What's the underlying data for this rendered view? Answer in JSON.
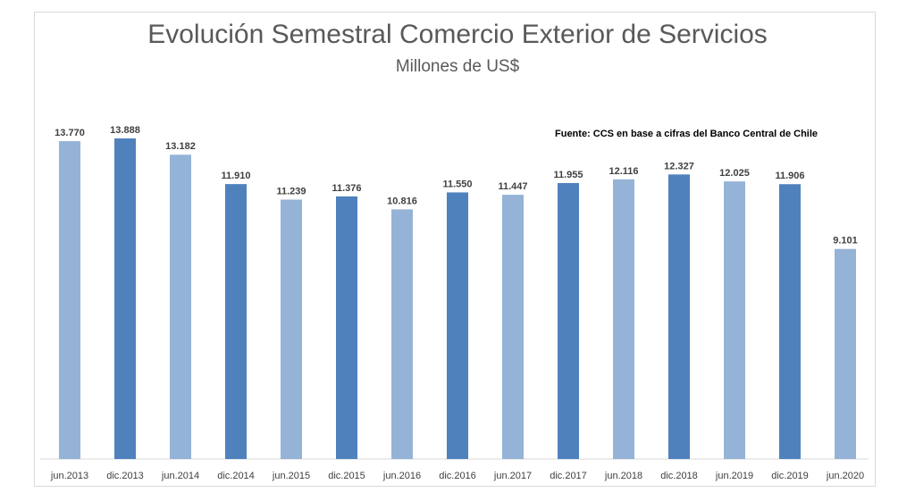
{
  "chart_data": {
    "type": "bar",
    "title": "Evolución Semestral Comercio Exterior de Servicios",
    "subtitle": "Millones de US$",
    "annotation": "Fuente: CCS en base a cifras del Banco Central de Chile",
    "categories": [
      "jun.2013",
      "dic.2013",
      "jun.2014",
      "dic.2014",
      "jun.2015",
      "dic.2015",
      "jun.2016",
      "dic.2016",
      "jun.2017",
      "dic.2017",
      "jun.2018",
      "dic.2018",
      "jun.2019",
      "dic.2019",
      "jun.2020"
    ],
    "values": [
      13770,
      13888,
      13182,
      11910,
      11239,
      11376,
      10816,
      11550,
      11447,
      11955,
      12116,
      12327,
      12025,
      11906,
      9101
    ],
    "value_labels": [
      "13.770",
      "13.888",
      "13.182",
      "11.910",
      "11.239",
      "11.376",
      "10.816",
      "11.550",
      "11.447",
      "11.955",
      "12.116",
      "12.327",
      "12.025",
      "11.906",
      "9.101"
    ],
    "colors": {
      "jun": "#95b3d7",
      "dic": "#4f81bd"
    },
    "ylim": [
      0,
      14000
    ],
    "grid": false,
    "legend": "none",
    "xlabel": "",
    "ylabel": ""
  }
}
